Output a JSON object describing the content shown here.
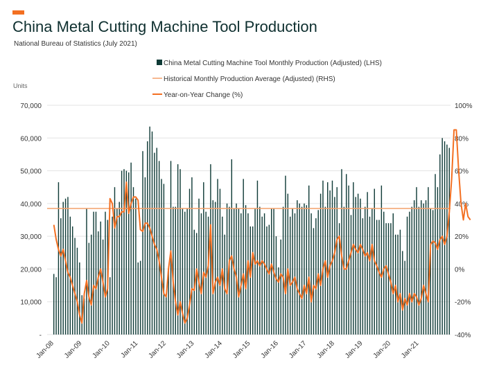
{
  "header": {
    "title": "China Metal Cutting Machine Tool Production",
    "subtitle": "National Bureau of Statistics (July 2021)"
  },
  "chart_data": {
    "type": "bar",
    "title": "China Metal Cutting Machine Tool Production",
    "subtitle": "National Bureau of Statistics (July 2021)",
    "y_left_label": "Units",
    "y_left_lim": [
      0,
      70000
    ],
    "y_left_ticks": [
      "-",
      "10,000",
      "20,000",
      "30,000",
      "40,000",
      "50,000",
      "60,000",
      "70,000"
    ],
    "y_right_lim": [
      -40,
      100
    ],
    "y_right_ticks": [
      "-40%",
      "-20%",
      "0%",
      "20%",
      "40%",
      "60%",
      "80%",
      "100%"
    ],
    "x_tick_labels": [
      "Jan-08",
      "Jan-09",
      "Jan-10",
      "Jan-11",
      "Jan-12",
      "Jan-13",
      "Jan-14",
      "Jan-15",
      "Jan-16",
      "Jan-17",
      "Jan-18",
      "Jan-19",
      "Jan-20",
      "Jan-21"
    ],
    "legend_position": "top-center",
    "grid": "horizontal",
    "colors": {
      "bars": "#0e3a36",
      "average": "#f4a06a",
      "yoy": "#f36f21"
    },
    "series": [
      {
        "name": "China Metal Cutting Machine Tool Monthly Production (Adjusted) (LHS)",
        "type": "bar",
        "axis": "left",
        "start": "Jan-08",
        "values": [
          18500,
          17500,
          46500,
          35500,
          40500,
          41500,
          42000,
          36000,
          33000,
          29500,
          26500,
          22000,
          12000,
          11000,
          38500,
          28000,
          30500,
          37500,
          37500,
          31500,
          34500,
          29000,
          37500,
          35000,
          17500,
          36000,
          45000,
          38500,
          40500,
          50000,
          50500,
          50000,
          49500,
          52500,
          45000,
          41500,
          22000,
          22500,
          56000,
          48000,
          59000,
          63500,
          62000,
          55500,
          57000,
          53000,
          47500,
          46000,
          12500,
          20000,
          53000,
          39000,
          39000,
          52000,
          50500,
          38500,
          37500,
          38500,
          44500,
          48000,
          32000,
          31000,
          41500,
          37000,
          46500,
          37500,
          36000,
          52000,
          41000,
          40500,
          47500,
          44500,
          36000,
          30500,
          40000,
          39000,
          53500,
          38500,
          40000,
          38500,
          37000,
          47500,
          39500,
          37000,
          33000,
          33000,
          38500,
          47000,
          39000,
          36000,
          37000,
          33000,
          33500,
          38500,
          38500,
          30000,
          20500,
          29000,
          39000,
          48500,
          43000,
          36000,
          38500,
          37000,
          41000,
          40000,
          39000,
          40000,
          39500,
          45500,
          37000,
          32500,
          35500,
          38000,
          43000,
          47000,
          39000,
          46500,
          44000,
          47000,
          42000,
          45000,
          34000,
          50500,
          39000,
          49000,
          45500,
          36500,
          46500,
          42000,
          43000,
          41500,
          35500,
          39000,
          43500,
          36000,
          38500,
          44500,
          35000,
          35000,
          45500,
          37500,
          34000,
          34000,
          34000,
          37000,
          30500,
          30500,
          32000,
          25500,
          22500,
          36000,
          37500,
          39000,
          41000,
          45000,
          39000,
          41000,
          40000,
          41000,
          45000,
          38500,
          38000,
          49000,
          45000,
          55000,
          60000,
          59000,
          58000,
          57000
        ]
      },
      {
        "name": "Historical Monthly Production Average (Adjusted) (RHS)",
        "type": "line",
        "axis": "left",
        "value": 38500
      },
      {
        "name": "Year-on-Year Change (%)",
        "type": "line",
        "axis": "right",
        "start": "Jan-08",
        "values": [
          27,
          18,
          12,
          8,
          12,
          5,
          -2,
          -5,
          -10,
          -15,
          -20,
          -28,
          -33,
          -15,
          -7,
          -17,
          -22,
          -10,
          -12,
          -5,
          0,
          -8,
          -17,
          -12,
          43,
          40,
          25,
          32,
          32,
          35,
          35,
          53,
          34,
          40,
          44,
          44,
          42,
          24,
          23,
          28,
          28,
          25,
          20,
          15,
          12,
          5,
          -5,
          -15,
          -17,
          0,
          11,
          -8,
          -20,
          -28,
          -20,
          -27,
          -33,
          -30,
          -22,
          -12,
          -13,
          0,
          -8,
          -15,
          -2,
          -5,
          2,
          27,
          -15,
          -8,
          -5,
          -10,
          0,
          -12,
          -15,
          5,
          8,
          0,
          -5,
          -17,
          -10,
          -3,
          -12,
          5,
          -5,
          10,
          3,
          5,
          2,
          5,
          3,
          0,
          -3,
          3,
          -2,
          -6,
          -8,
          -3,
          -5,
          -15,
          0,
          -10,
          -8,
          -5,
          -12,
          -15,
          -18,
          -10,
          -15,
          -5,
          -20,
          -10,
          -12,
          -3,
          -10,
          0,
          5,
          -5,
          2,
          5,
          10,
          18,
          20,
          8,
          0,
          0,
          5,
          10,
          15,
          12,
          10,
          15,
          12,
          8,
          10,
          5,
          15,
          5,
          2,
          -2,
          -5,
          0,
          2,
          -3,
          -8,
          -15,
          -10,
          -20,
          -15,
          -25,
          -18,
          -22,
          -15,
          -20,
          -15,
          -17,
          -22,
          -18,
          -10,
          -15,
          -20,
          15,
          17,
          16,
          12,
          18,
          20,
          15,
          20,
          35,
          55,
          85,
          85,
          60,
          40,
          30,
          40,
          32,
          30
        ]
      }
    ]
  }
}
